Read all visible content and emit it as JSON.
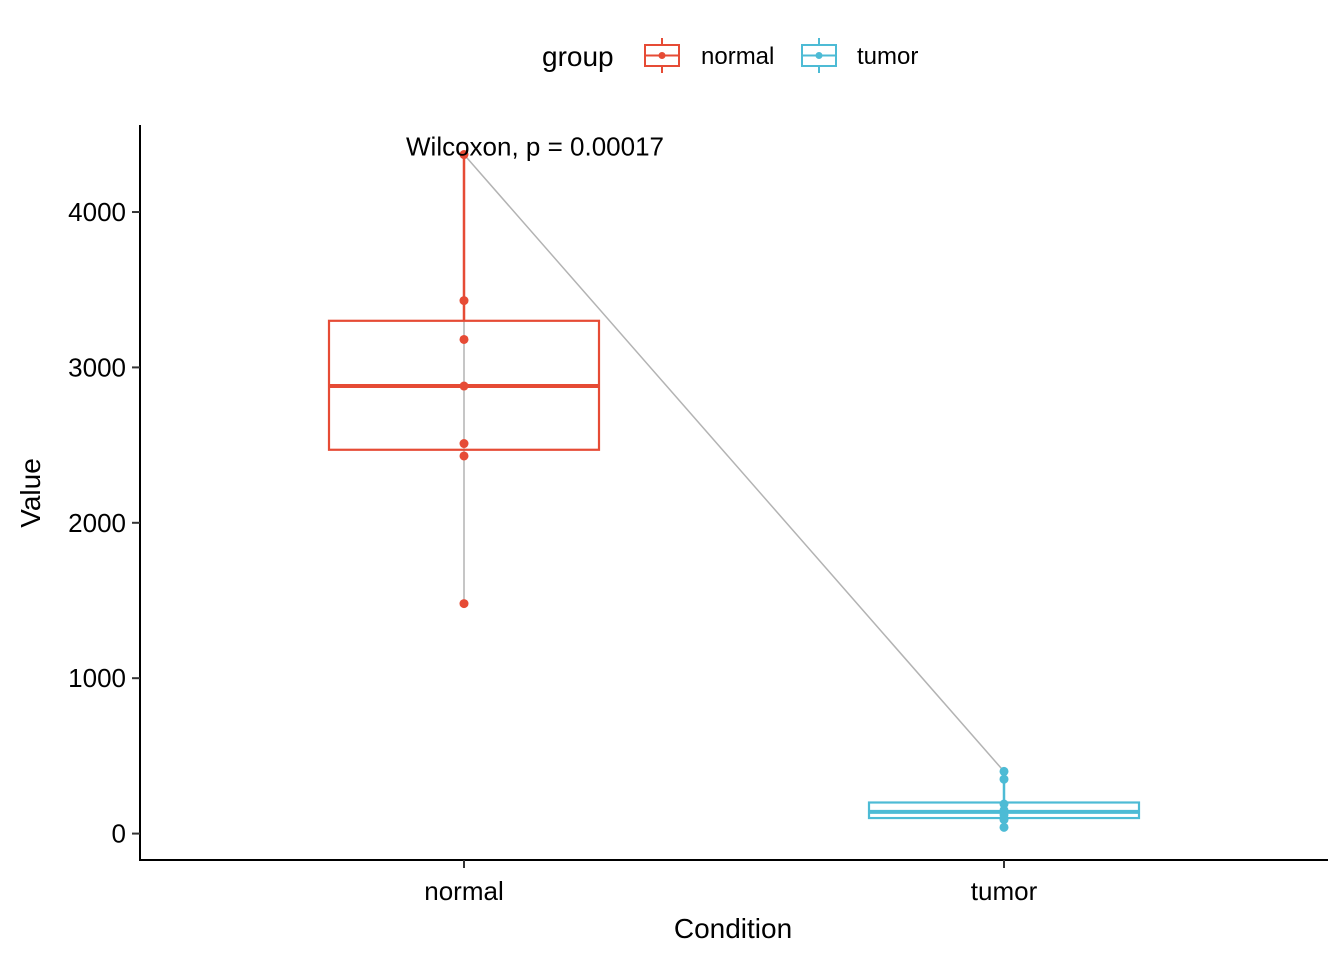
{
  "chart_data": {
    "type": "box",
    "xlabel": "Condition",
    "ylabel": "Value",
    "categories": [
      "normal",
      "tumor"
    ],
    "ylim": [
      -170,
      4560
    ],
    "yticks": [
      0,
      1000,
      2000,
      3000,
      4000
    ],
    "ytick_labels": [
      "0",
      "1000",
      "2000",
      "3000",
      "4000"
    ],
    "legend": {
      "title": "group",
      "position": "top",
      "entries": [
        "normal",
        "tumor"
      ]
    },
    "colors": {
      "normal": "#E64B35",
      "tumor": "#4DBBD5",
      "line": "#B3B3B3"
    },
    "series": [
      {
        "name": "normal",
        "box": {
          "min": 1480,
          "q1": 2470,
          "median": 2880,
          "q3": 3300,
          "max": 4370
        },
        "points": [
          4370,
          3430,
          3180,
          2880,
          2510,
          2430,
          1480
        ]
      },
      {
        "name": "tumor",
        "box": {
          "min": 40,
          "q1": 100,
          "median": 140,
          "q3": 200,
          "max": 400
        },
        "points": [
          400,
          350,
          190,
          150,
          120,
          90,
          40
        ]
      }
    ],
    "connector": {
      "from": [
        "normal",
        4370
      ],
      "to": [
        "tumor",
        400
      ]
    },
    "annotations": [
      {
        "text": "Wilcoxon, p = 0.00017",
        "x": "normal",
        "y": 4370
      }
    ],
    "grid": false
  }
}
